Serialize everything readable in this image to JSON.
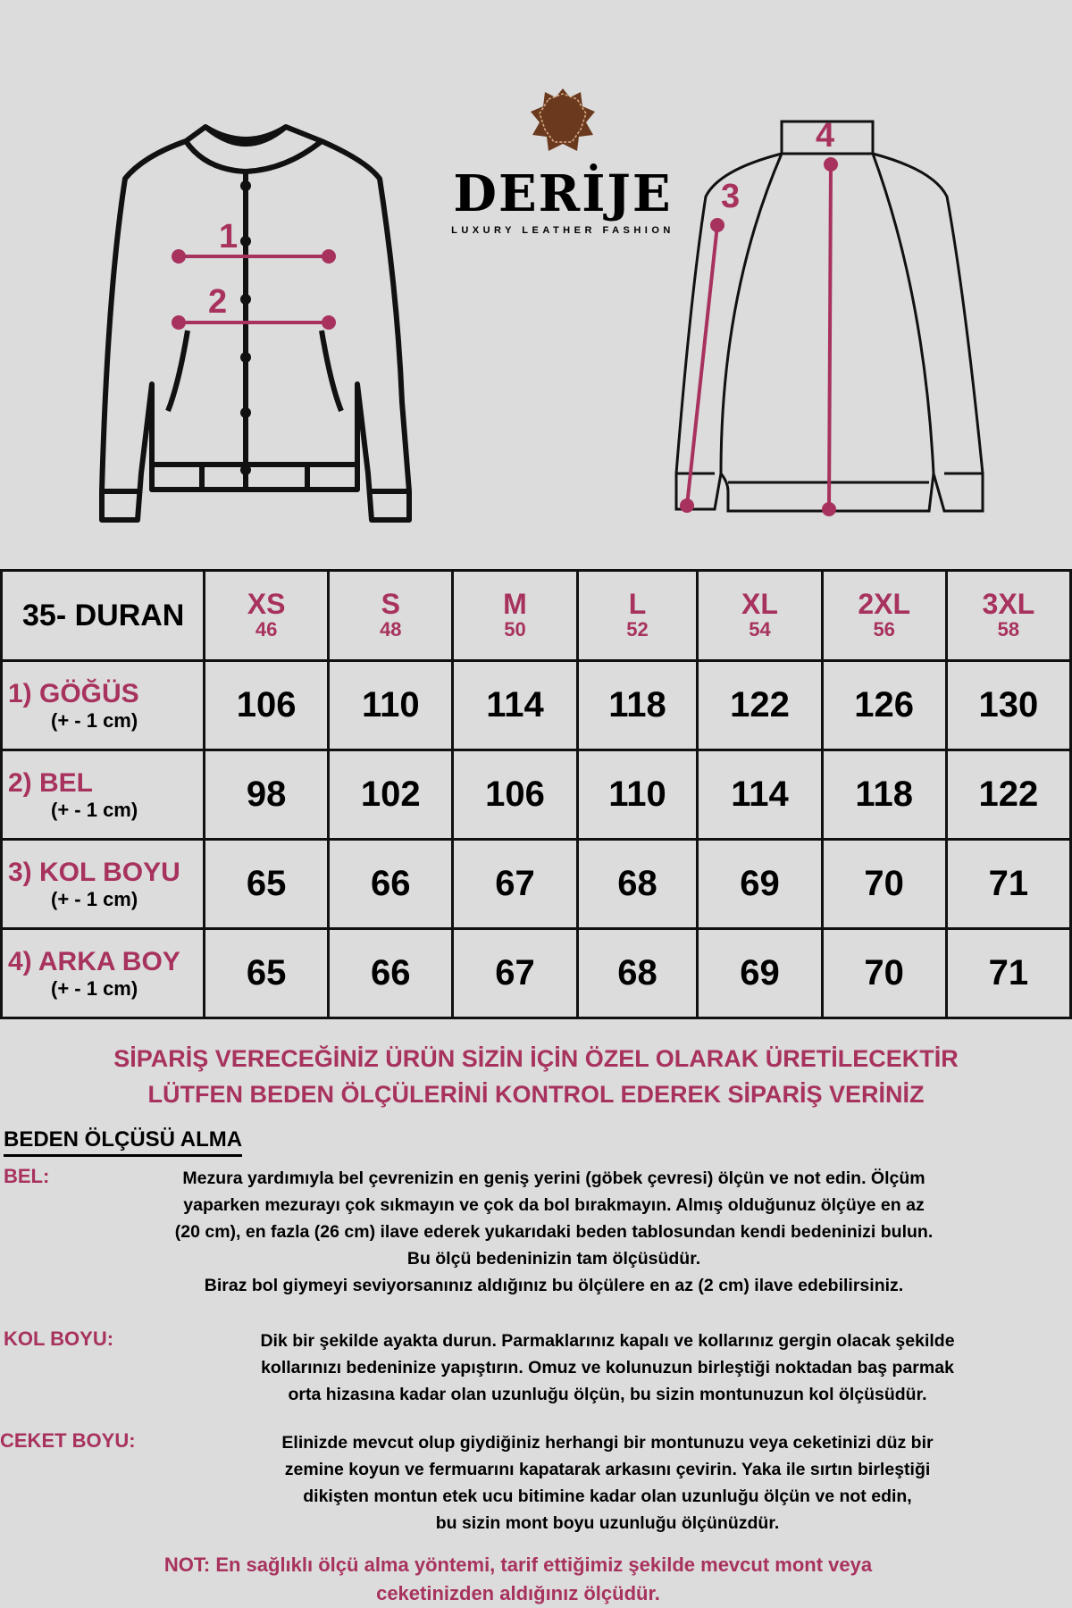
{
  "brand": {
    "name": "DERİJE",
    "tagline": "LUXURY LEATHER FASHION",
    "logo_color": "#6b3a1e"
  },
  "colors": {
    "accent": "#a8325e",
    "background": "#dcdcdc"
  },
  "diagram": {
    "front_labels": [
      "1",
      "2"
    ],
    "back_labels": [
      "3",
      "4"
    ]
  },
  "table": {
    "model": "35- DURAN",
    "sizes": [
      {
        "size": "XS",
        "num": "46"
      },
      {
        "size": "S",
        "num": "48"
      },
      {
        "size": "M",
        "num": "50"
      },
      {
        "size": "L",
        "num": "52"
      },
      {
        "size": "XL",
        "num": "54"
      },
      {
        "size": "2XL",
        "num": "56"
      },
      {
        "size": "3XL",
        "num": "58"
      }
    ],
    "rows": [
      {
        "label": "1) GÖĞÜS",
        "tol": "(+ - 1 cm)",
        "values": [
          "106",
          "110",
          "114",
          "118",
          "122",
          "126",
          "130"
        ]
      },
      {
        "label": "2) BEL",
        "tol": "(+ - 1 cm)",
        "values": [
          "98",
          "102",
          "106",
          "110",
          "114",
          "118",
          "122"
        ]
      },
      {
        "label": "3) KOL BOYU",
        "tol": "(+ - 1 cm)",
        "values": [
          "65",
          "66",
          "67",
          "68",
          "69",
          "70",
          "71"
        ]
      },
      {
        "label": "4) ARKA BOY",
        "tol": "(+ - 1 cm)",
        "values": [
          "65",
          "66",
          "67",
          "68",
          "69",
          "70",
          "71"
        ]
      }
    ]
  },
  "notice": [
    "SİPARİŞ VERECEĞİNİZ ÜRÜN SİZİN İÇİN ÖZEL OLARAK ÜRETİLECEKTİR",
    "LÜTFEN BEDEN ÖLÇÜLERİNİ KONTROL EDEREK SİPARİŞ VERİNİZ"
  ],
  "guide": {
    "title": "BEDEN ÖLÇÜSÜ ALMA",
    "bel": {
      "label": "BEL:",
      "lines": [
        "Mezura yardımıyla bel çevrenizin en geniş yerini (göbek çevresi) ölçün ve not edin. Ölçüm",
        "yaparken mezurayı çok sıkmayın ve çok da bol bırakmayın. Almış olduğunuz ölçüye en az",
        "(20 cm), en fazla (26 cm) ilave ederek yukarıdaki beden tablosundan kendi bedeninizi bulun.",
        "Bu ölçü bedeninizin tam ölçüsüdür.",
        "Biraz bol giymeyi seviyorsanınız aldığınız bu ölçülere en az (2 cm) ilave edebilirsiniz."
      ]
    },
    "kol": {
      "label": "KOL BOYU:",
      "lines": [
        "Dik bir şekilde ayakta durun. Parmaklarınız kapalı ve kollarınız gergin olacak şekilde",
        "kollarınızı bedeninize yapıştırın. Omuz ve kolunuzun birleştiği noktadan baş parmak",
        "orta hizasına kadar olan uzunluğu ölçün, bu sizin montunuzun kol ölçüsüdür."
      ]
    },
    "ceket": {
      "label": "CEKET BOYU:",
      "lines": [
        "Elinizde mevcut olup giydiğiniz herhangi bir montunuzu veya ceketinizi düz bir",
        "zemine koyun ve fermuarını kapatarak arkasını çevirin. Yaka ile sırtın birleştiği",
        "dikişten montun etek ucu bitimine kadar olan uzunluğu ölçün ve not edin,",
        "bu sizin mont boyu uzunluğu ölçünüzdür."
      ]
    },
    "note": [
      "NOT: En sağlıklı ölçü alma yöntemi, tarif ettiğimiz şekilde mevcut mont veya",
      "ceketinizden aldığınız ölçüdür."
    ]
  }
}
